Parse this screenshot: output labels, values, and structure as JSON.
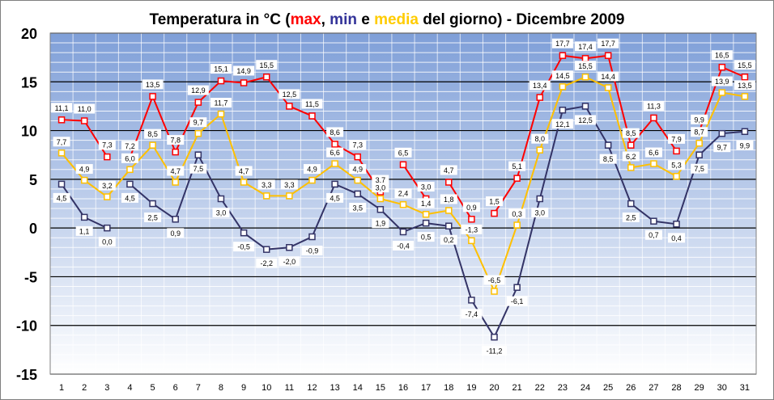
{
  "chart_data": {
    "type": "line",
    "title_parts": {
      "prefix": "Temperatura in °C (",
      "max": "max",
      "sep1": ", ",
      "min": "min",
      "sep2": " e ",
      "media": "media",
      "suffix": " del giorno) - Dicembre 2009"
    },
    "x": [
      1,
      2,
      3,
      4,
      5,
      6,
      7,
      8,
      9,
      10,
      11,
      12,
      13,
      14,
      15,
      16,
      17,
      18,
      19,
      20,
      21,
      22,
      23,
      24,
      25,
      26,
      27,
      28,
      29,
      30,
      31
    ],
    "ylim": [
      -15,
      20
    ],
    "yticks": [
      -15,
      -10,
      -5,
      0,
      5,
      10,
      15,
      20
    ],
    "grid": true,
    "series": [
      {
        "name": "max",
        "color": "#ff0000",
        "values": [
          11.1,
          11.0,
          7.3,
          7.2,
          13.5,
          7.8,
          12.9,
          15.1,
          14.9,
          15.5,
          12.5,
          11.5,
          8.6,
          7.3,
          3.7,
          6.5,
          3.0,
          4.7,
          0.9,
          1.5,
          5.1,
          13.4,
          17.7,
          17.4,
          17.7,
          8.5,
          11.3,
          7.9,
          9.9,
          16.5,
          15.5
        ],
        "labels": [
          "11,1",
          "11,0",
          "7,3",
          "7,2",
          "13,5",
          "7,8",
          "12,9",
          "15,1",
          "14,9",
          "15,5",
          "12,5",
          "11,5",
          "8,6",
          "7,3",
          "3,7",
          "6,5",
          "3,0",
          "4,7",
          "0,9",
          "1,5",
          "5,1",
          "13,4",
          "17,7",
          "17,4",
          "17,7",
          "8,5",
          "11,3",
          "7,9",
          "9,9",
          "16,5",
          "15,5"
        ],
        "connect": [
          true,
          true,
          false,
          true,
          true,
          true,
          true,
          true,
          true,
          true,
          true,
          true,
          true,
          true,
          false,
          true,
          false,
          true,
          false,
          true,
          true,
          true,
          true,
          true,
          true,
          true,
          true,
          false,
          true,
          true
        ]
      },
      {
        "name": "min",
        "color": "#333366",
        "values": [
          4.5,
          1.1,
          0.0,
          4.5,
          2.5,
          0.9,
          7.5,
          3.0,
          -0.5,
          -2.2,
          -2.0,
          -0.9,
          4.5,
          3.5,
          1.9,
          -0.4,
          0.5,
          0.2,
          -7.4,
          -11.2,
          -6.1,
          3.0,
          12.1,
          12.5,
          8.5,
          2.5,
          0.7,
          0.4,
          7.5,
          9.7,
          9.9
        ],
        "labels": [
          "4,5",
          "1,1",
          "0,0",
          "4,5",
          "2,5",
          "0,9",
          "7,5",
          "3,0",
          "-0,5",
          "-2,2",
          "-2,0",
          "-0,9",
          "4,5",
          "3,5",
          "1,9",
          "-0,4",
          "0,5",
          "0,2",
          "-7,4",
          "-11,2",
          "-6,1",
          "3,0",
          "12,1",
          "12,5",
          "8,5",
          "2,5",
          "0,7",
          "0,4",
          "7,5",
          "9,7",
          "9,9"
        ],
        "connect": [
          true,
          true,
          false,
          true,
          true,
          true,
          true,
          true,
          true,
          true,
          true,
          true,
          true,
          true,
          true,
          true,
          true,
          true,
          true,
          true,
          true,
          true,
          true,
          true,
          true,
          true,
          true,
          true,
          true,
          true
        ]
      },
      {
        "name": "media",
        "color": "#ffc000",
        "values": [
          7.7,
          4.9,
          3.2,
          6.0,
          8.5,
          4.7,
          9.7,
          11.7,
          4.7,
          3.3,
          3.3,
          4.9,
          6.6,
          4.9,
          3.0,
          2.4,
          1.4,
          1.8,
          -1.3,
          -6.5,
          0.3,
          8.0,
          14.5,
          15.5,
          14.4,
          6.2,
          6.6,
          5.3,
          8.7,
          13.9,
          13.5
        ],
        "labels": [
          "7,7",
          "4,9",
          "3,2",
          "6,0",
          "8,5",
          "4,7",
          "9,7",
          "11,7",
          "4,7",
          "3,3",
          "3,3",
          "4,9",
          "6,6",
          "4,9",
          "3,0",
          "2,4",
          "1,4",
          "1,8",
          "-1,3",
          "-6,5",
          "0,3",
          "8,0",
          "14,5",
          "15,5",
          "14,4",
          "6,2",
          "6,6",
          "5,3",
          "8,7",
          "13,9",
          "13,5"
        ],
        "connect": [
          true,
          true,
          true,
          true,
          true,
          true,
          true,
          true,
          true,
          true,
          true,
          true,
          true,
          true,
          true,
          true,
          true,
          true,
          true,
          true,
          true,
          true,
          true,
          true,
          true,
          true,
          true,
          true,
          true,
          true
        ]
      }
    ]
  }
}
